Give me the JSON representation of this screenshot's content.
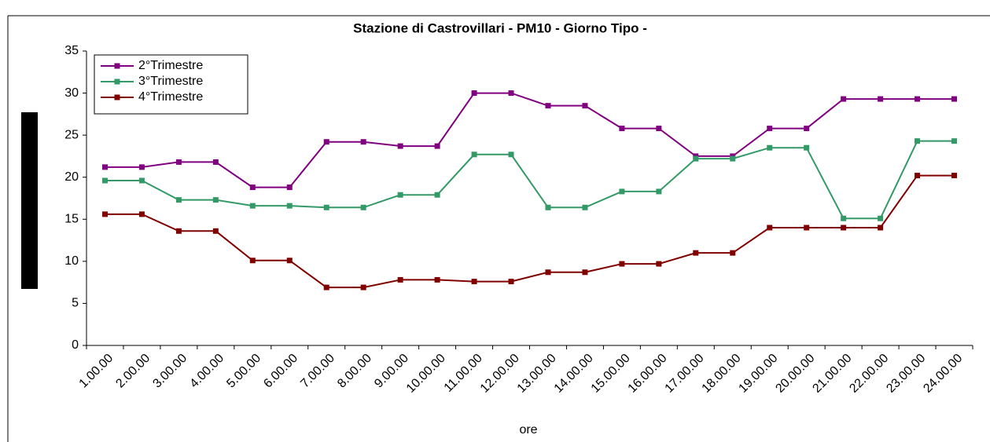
{
  "chart_data": {
    "type": "line",
    "title": "Stazione di Castrovillari - PM10 - Giorno Tipo -",
    "x_label": "ore",
    "categories": [
      "1.00.00",
      "2.00.00",
      "3.00.00",
      "4.00.00",
      "5.00.00",
      "6.00.00",
      "7.00.00",
      "8.00.00",
      "9.00.00",
      "10.00.00",
      "11.00.00",
      "12.00.00",
      "13.00.00",
      "14.00.00",
      "15.00.00",
      "16.00.00",
      "17.00.00",
      "18.00.00",
      "19.00.00",
      "20.00.00",
      "21.00.00",
      "22.00.00",
      "23.00.00",
      "24.00.00"
    ],
    "series": [
      {
        "name": "2°Trimestre",
        "color": "#800080",
        "values": [
          21.2,
          21.2,
          21.8,
          21.8,
          18.8,
          18.8,
          24.2,
          24.2,
          23.7,
          23.7,
          30,
          30,
          28.5,
          28.5,
          25.8,
          25.8,
          22.5,
          22.5,
          25.8,
          25.8,
          29.3,
          29.3,
          29.3,
          29.3
        ]
      },
      {
        "name": "3°Trimestre",
        "color": "#339966",
        "values": [
          19.6,
          19.6,
          17.3,
          17.3,
          16.6,
          16.6,
          16.4,
          16.4,
          17.9,
          17.9,
          22.7,
          22.7,
          16.4,
          16.4,
          18.3,
          18.3,
          22.2,
          22.2,
          23.5,
          23.5,
          15.1,
          15.1,
          24.3,
          24.3
        ]
      },
      {
        "name": "4°Trimestre",
        "color": "#800000",
        "values": [
          15.6,
          15.6,
          13.6,
          13.6,
          10.1,
          10.1,
          6.9,
          6.9,
          7.8,
          7.8,
          7.6,
          7.6,
          8.7,
          8.7,
          9.7,
          9.7,
          11,
          11,
          14,
          14,
          14,
          14,
          20.2,
          20.2
        ]
      }
    ],
    "ylim": [
      0,
      35
    ],
    "yticks": [
      0,
      5,
      10,
      15,
      20,
      25,
      30,
      35
    ],
    "legend": "upper left"
  }
}
